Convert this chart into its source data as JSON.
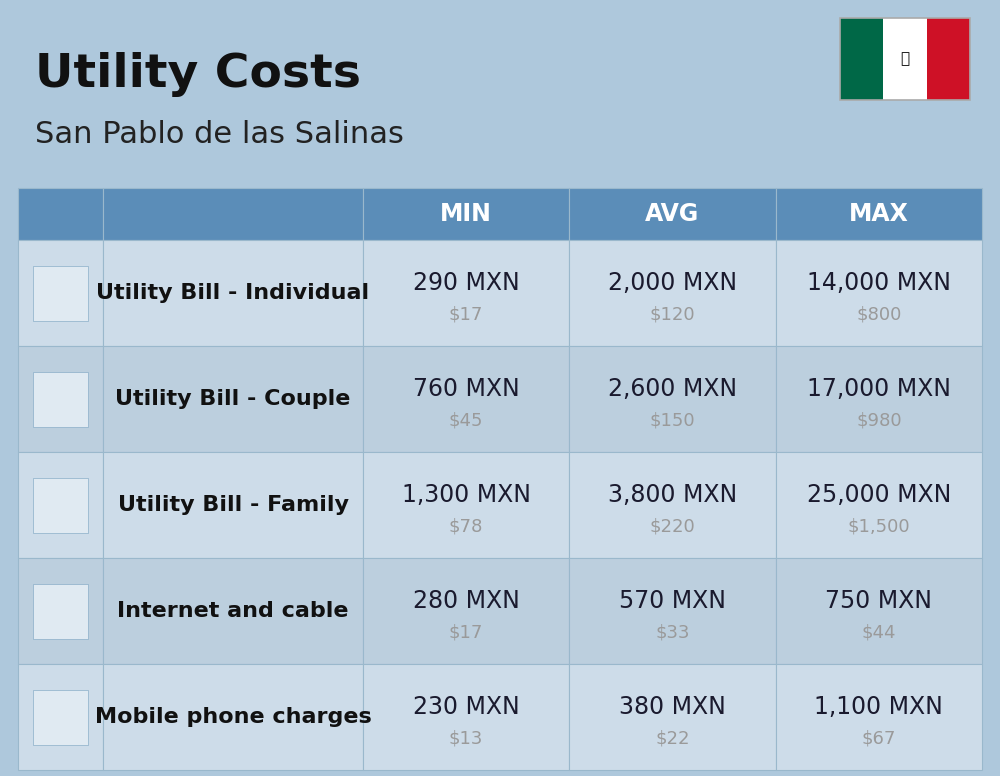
{
  "title": "Utility Costs",
  "subtitle": "San Pablo de las Salinas",
  "background_color": "#aec8dc",
  "header_bg_color": "#5b8db8",
  "header_text_color": "#ffffff",
  "row_bg_color_1": "#cddce9",
  "row_bg_color_2": "#bccfde",
  "col_headers": [
    "MIN",
    "AVG",
    "MAX"
  ],
  "rows": [
    {
      "label": "Utility Bill - Individual",
      "min_mxn": "290 MXN",
      "min_usd": "$17",
      "avg_mxn": "2,000 MXN",
      "avg_usd": "$120",
      "max_mxn": "14,000 MXN",
      "max_usd": "$800"
    },
    {
      "label": "Utility Bill - Couple",
      "min_mxn": "760 MXN",
      "min_usd": "$45",
      "avg_mxn": "2,600 MXN",
      "avg_usd": "$150",
      "max_mxn": "17,000 MXN",
      "max_usd": "$980"
    },
    {
      "label": "Utility Bill - Family",
      "min_mxn": "1,300 MXN",
      "min_usd": "$78",
      "avg_mxn": "3,800 MXN",
      "avg_usd": "$220",
      "max_mxn": "25,000 MXN",
      "max_usd": "$1,500"
    },
    {
      "label": "Internet and cable",
      "min_mxn": "280 MXN",
      "min_usd": "$17",
      "avg_mxn": "570 MXN",
      "avg_usd": "$33",
      "max_mxn": "750 MXN",
      "max_usd": "$44"
    },
    {
      "label": "Mobile phone charges",
      "min_mxn": "230 MXN",
      "min_usd": "$13",
      "avg_mxn": "380 MXN",
      "avg_usd": "$22",
      "max_mxn": "1,100 MXN",
      "max_usd": "$67"
    }
  ],
  "title_fontsize": 34,
  "subtitle_fontsize": 22,
  "header_fontsize": 17,
  "label_fontsize": 16,
  "value_fontsize": 17,
  "usd_fontsize": 13,
  "cell_border_color": "#9ab8cc",
  "usd_color": "#9a9a9a",
  "value_color": "#1a1a2e",
  "label_color": "#111111",
  "flag_green": "#006847",
  "flag_white": "#ffffff",
  "flag_red": "#ce1126"
}
